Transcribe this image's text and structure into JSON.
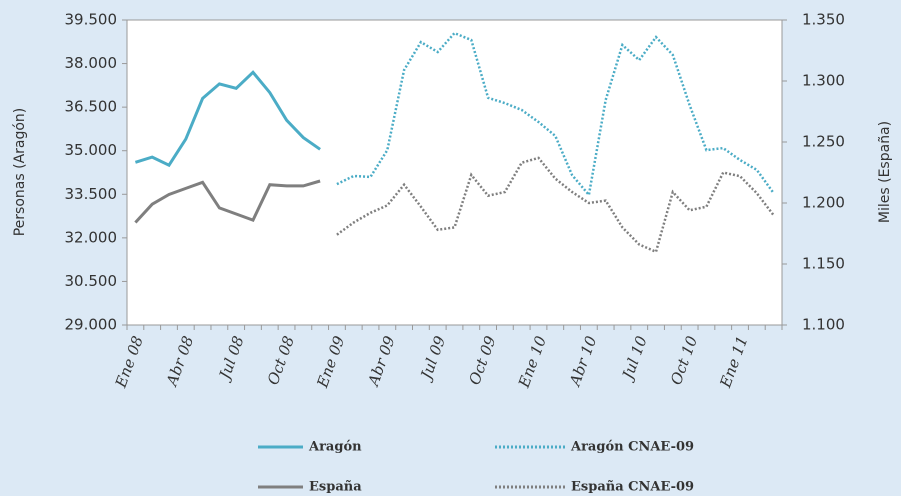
{
  "chart_data": {
    "type": "line",
    "categories": [
      "Ene 08",
      null,
      null,
      "Abr 08",
      null,
      null,
      "Jul 08",
      null,
      null,
      "Oct 08",
      null,
      null,
      "Ene 09",
      null,
      null,
      "Abr 09",
      null,
      null,
      "Jul 09",
      null,
      null,
      "Oct 09",
      null,
      null,
      "Ene 10",
      null,
      null,
      "Abr 10",
      null,
      null,
      "Jul 10",
      null,
      null,
      "Oct 10",
      null,
      null,
      "Ene 11",
      null,
      null
    ],
    "ylabel": "Personas (Aragón)",
    "y2label": "Miles (España)",
    "ylim": [
      29000,
      39500
    ],
    "yticks": [
      {
        "value": 29000,
        "label": "29.000"
      },
      {
        "value": 30500,
        "label": "30.500"
      },
      {
        "value": 32000,
        "label": "32.000"
      },
      {
        "value": 33500,
        "label": "33.500"
      },
      {
        "value": 35000,
        "label": "35.000"
      },
      {
        "value": 36500,
        "label": "36.500"
      },
      {
        "value": 38000,
        "label": "38.000"
      },
      {
        "value": 39500,
        "label": "39.500"
      }
    ],
    "y2lim": [
      1100,
      1350
    ],
    "y2ticks": [
      {
        "value": 1100,
        "label": "1.100"
      },
      {
        "value": 1150,
        "label": "1.150"
      },
      {
        "value": 1200,
        "label": "1.200"
      },
      {
        "value": 1250,
        "label": "1.250"
      },
      {
        "value": 1300,
        "label": "1.300"
      },
      {
        "value": 1350,
        "label": "1.350"
      }
    ],
    "grid": false,
    "legend": "bottom",
    "series": [
      {
        "name": "Aragón",
        "color": "#4bacc6",
        "style": "solid",
        "axis": "y",
        "values": [
          34600,
          34780,
          34500,
          35400,
          36800,
          37300,
          37150,
          37700,
          37000,
          36050,
          35450,
          35050,
          null,
          null,
          null,
          null,
          null,
          null,
          null,
          null,
          null,
          null,
          null,
          null,
          null,
          null,
          null,
          null,
          null,
          null,
          null,
          null,
          null,
          null,
          null,
          null,
          null,
          null,
          null
        ]
      },
      {
        "name": "Aragón CNAE-09",
        "color": "#4bacc6",
        "style": "dotted",
        "axis": "y",
        "values": [
          null,
          null,
          null,
          null,
          null,
          null,
          null,
          null,
          null,
          null,
          null,
          null,
          33850,
          34130,
          34100,
          35020,
          37780,
          38740,
          38400,
          39050,
          38810,
          36820,
          36640,
          36400,
          35990,
          35510,
          34160,
          33480,
          36750,
          38640,
          38120,
          38910,
          38300,
          36570,
          35020,
          35090,
          34680,
          34340,
          33540
        ]
      },
      {
        "name": "España",
        "color": "#7f7f7f",
        "style": "solid",
        "axis": "y2",
        "values": [
          1184,
          1199,
          1207,
          1212,
          1217,
          1196,
          1191,
          1186,
          1215,
          1214,
          1214,
          1218,
          null,
          null,
          null,
          null,
          null,
          null,
          null,
          null,
          null,
          null,
          null,
          null,
          null,
          null,
          null,
          null,
          null,
          null,
          null,
          null,
          null,
          null,
          null,
          null,
          null,
          null,
          null
        ]
      },
      {
        "name": "España CNAE-09",
        "color": "#7f7f7f",
        "style": "dotted",
        "axis": "y2",
        "values": [
          null,
          null,
          null,
          null,
          null,
          null,
          null,
          null,
          null,
          null,
          null,
          null,
          1174,
          1184,
          1192,
          1198,
          1215,
          1197,
          1178,
          1180,
          1223,
          1206,
          1209,
          1233,
          1237,
          1220,
          1209,
          1200,
          1202,
          1180,
          1166,
          1160,
          1209,
          1194,
          1197,
          1225,
          1222,
          1208,
          1190
        ]
      }
    ]
  }
}
